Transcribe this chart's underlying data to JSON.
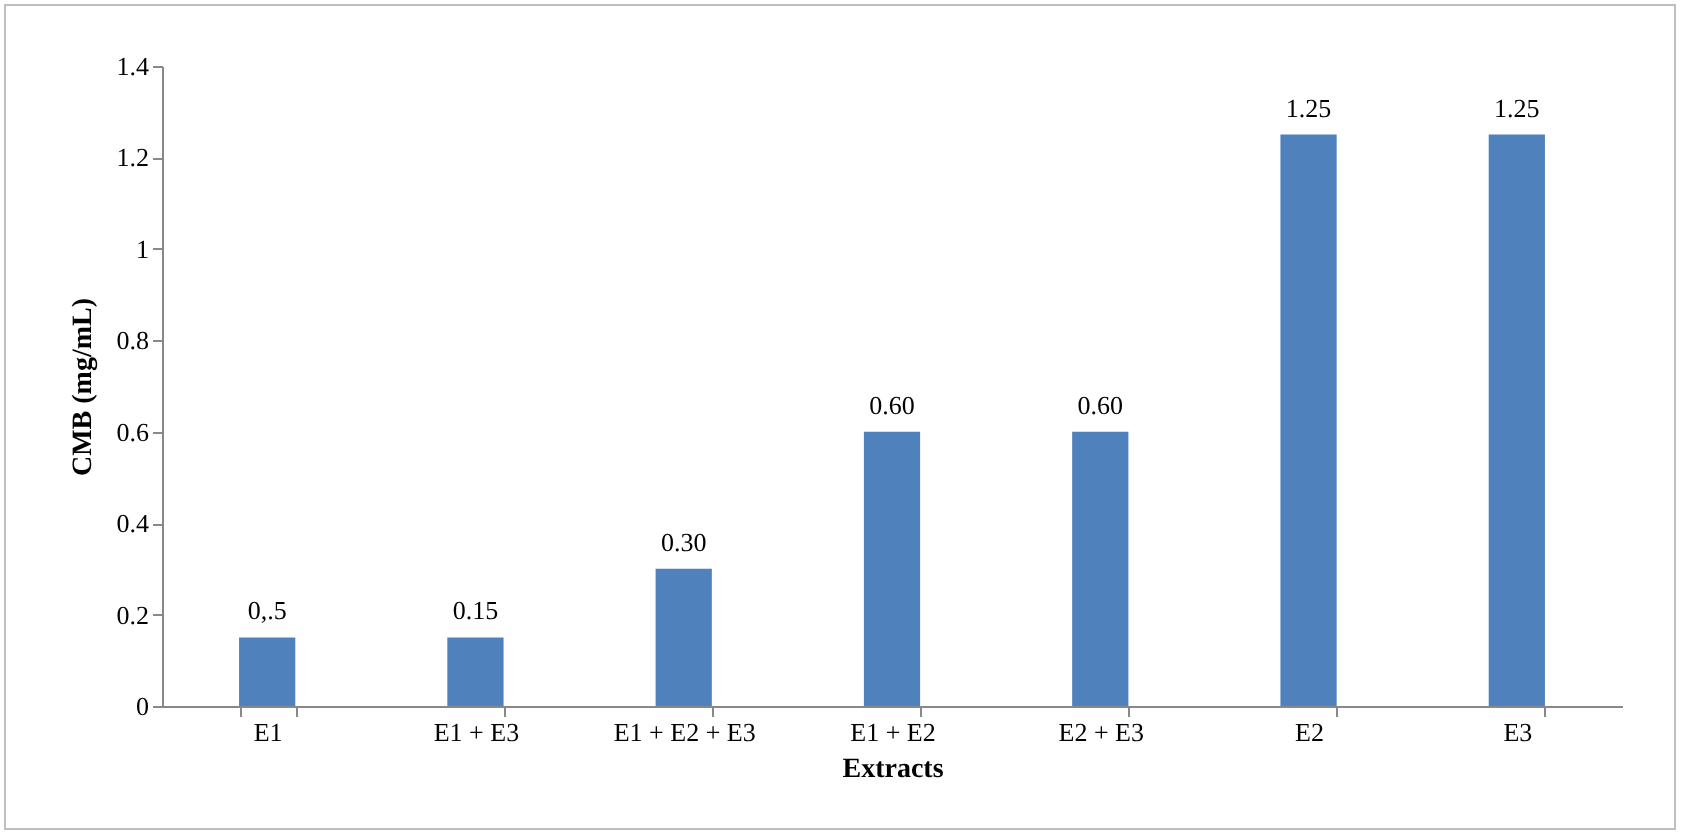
{
  "chart_data": {
    "type": "bar",
    "xlabel": "Extracts",
    "ylabel": "CMB (mg/mL)",
    "categories": [
      "E1",
      "E1 + E3",
      "E1 + E2 + E3",
      "E1 + E2",
      "E2 + E3",
      "E2",
      "E3"
    ],
    "values": [
      0.15,
      0.15,
      0.3,
      0.6,
      0.6,
      1.25,
      1.25
    ],
    "value_labels": [
      "0,.5",
      "0.15",
      "0.30",
      "0.60",
      "0.60",
      "1.25",
      "1.25"
    ],
    "color": "#4f81bd",
    "ylim": [
      0,
      1.4
    ],
    "yticks": [
      0,
      0.2,
      0.4,
      0.6,
      0.8,
      1,
      1.2,
      1.4
    ],
    "grid": false
  }
}
